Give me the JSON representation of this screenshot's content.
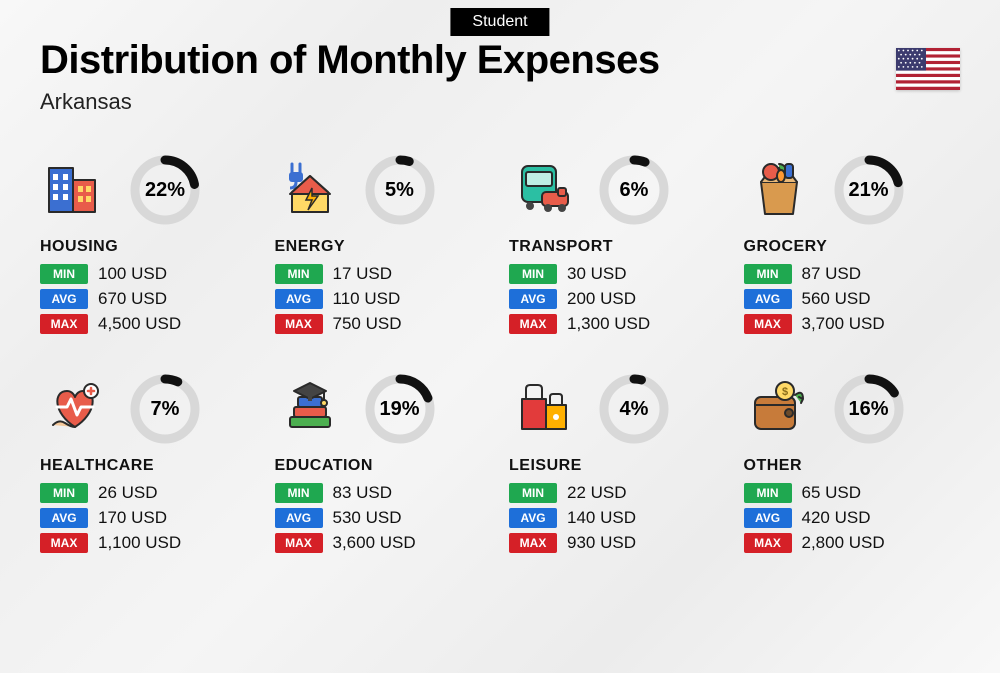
{
  "badge": "Student",
  "title": "Distribution of Monthly Expenses",
  "subtitle": "Arkansas",
  "labels": {
    "min": "MIN",
    "avg": "AVG",
    "max": "MAX"
  },
  "colors": {
    "min": "#1fa850",
    "avg": "#1e6fd9",
    "max": "#d52027",
    "ring_bg": "#d8d8d8",
    "ring_fg": "#111111"
  },
  "ring": {
    "radius": 30,
    "stroke_width": 9
  },
  "flag": {
    "name": "usa-flag",
    "stripe_red": "#b22234",
    "stripe_white": "#ffffff",
    "union_blue": "#3c3b6e"
  },
  "categories": [
    {
      "key": "housing",
      "name": "HOUSING",
      "percent": 22,
      "min": "100 USD",
      "avg": "670 USD",
      "max": "4,500 USD",
      "icon": "housing-icon"
    },
    {
      "key": "energy",
      "name": "ENERGY",
      "percent": 5,
      "min": "17 USD",
      "avg": "110 USD",
      "max": "750 USD",
      "icon": "energy-icon"
    },
    {
      "key": "transport",
      "name": "TRANSPORT",
      "percent": 6,
      "min": "30 USD",
      "avg": "200 USD",
      "max": "1,300 USD",
      "icon": "transport-icon"
    },
    {
      "key": "grocery",
      "name": "GROCERY",
      "percent": 21,
      "min": "87 USD",
      "avg": "560 USD",
      "max": "3,700 USD",
      "icon": "grocery-icon"
    },
    {
      "key": "healthcare",
      "name": "HEALTHCARE",
      "percent": 7,
      "min": "26 USD",
      "avg": "170 USD",
      "max": "1,100 USD",
      "icon": "healthcare-icon"
    },
    {
      "key": "education",
      "name": "EDUCATION",
      "percent": 19,
      "min": "83 USD",
      "avg": "530 USD",
      "max": "3,600 USD",
      "icon": "education-icon"
    },
    {
      "key": "leisure",
      "name": "LEISURE",
      "percent": 4,
      "min": "22 USD",
      "avg": "140 USD",
      "max": "930 USD",
      "icon": "leisure-icon"
    },
    {
      "key": "other",
      "name": "OTHER",
      "percent": 16,
      "min": "65 USD",
      "avg": "420 USD",
      "max": "2,800 USD",
      "icon": "other-icon"
    }
  ]
}
